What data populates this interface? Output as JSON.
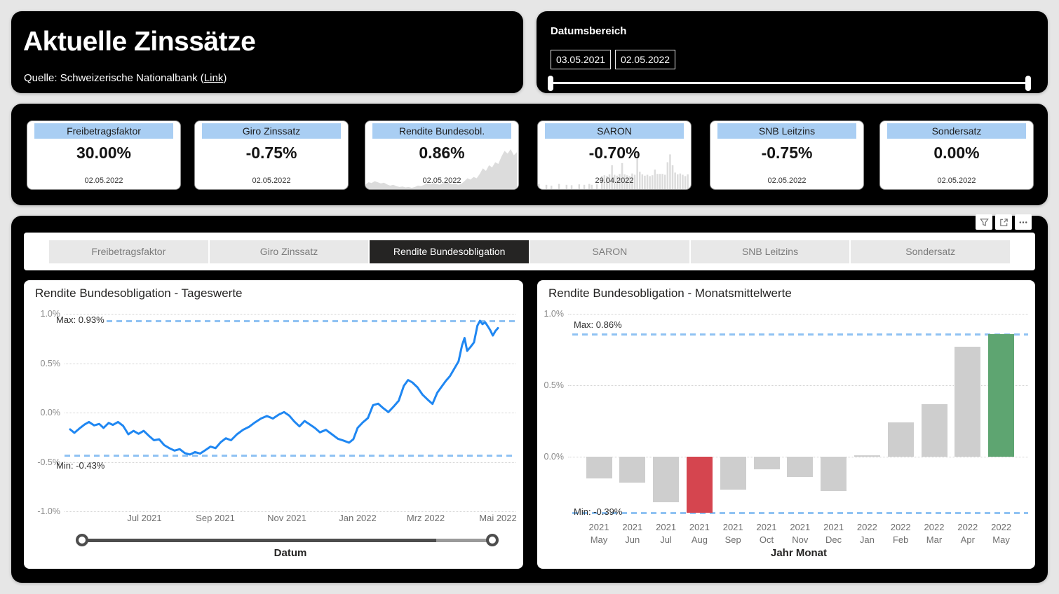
{
  "header": {
    "title": "Aktuelle Zinssätze",
    "source_prefix": "Quelle: Schweizerische Nationalbank (",
    "source_link": "Link",
    "source_suffix": ")"
  },
  "date_range": {
    "label": "Datumsbereich",
    "start": "03.05.2021",
    "end": "02.05.2022"
  },
  "kpi_cards": [
    {
      "title": "Freibetragsfaktor",
      "value": "30.00%",
      "date": "02.05.2022"
    },
    {
      "title": "Giro Zinssatz",
      "value": "-0.75%",
      "date": "02.05.2022"
    },
    {
      "title": "Rendite Bundesobl.",
      "value": "0.86%",
      "date": "02.05.2022"
    },
    {
      "title": "SARON",
      "value": "-0.70%",
      "date": "29.04.2022"
    },
    {
      "title": "SNB Leitzins",
      "value": "-0.75%",
      "date": "02.05.2022"
    },
    {
      "title": "Sondersatz",
      "value": "0.00%",
      "date": "02.05.2022"
    }
  ],
  "visual_header_icons": [
    "filter-icon",
    "popout-icon",
    "more-options-icon"
  ],
  "tabs": [
    {
      "label": "Freibetragsfaktor",
      "active": false
    },
    {
      "label": "Giro Zinssatz",
      "active": false
    },
    {
      "label": "Rendite Bundesobligation",
      "active": true
    },
    {
      "label": "SARON",
      "active": false
    },
    {
      "label": "SNB Leitzins",
      "active": false
    },
    {
      "label": "Sondersatz",
      "active": false
    }
  ],
  "colors": {
    "accent_blue": "#a9cef3",
    "line_blue": "#1f87f2",
    "dash_blue": "#8fc2f3",
    "bar_gray": "#cecece",
    "bar_red": "#d5454f",
    "bar_green": "#5ea571",
    "spark_gray": "#dcdcdc"
  },
  "chart_data": [
    {
      "type": "line",
      "title": "Rendite Bundesobligation - Tageswerte",
      "xlabel": "Datum",
      "ylabel": "",
      "ylim": [
        -1.0,
        1.0
      ],
      "ytick_values": [
        1.0,
        0.5,
        0.0,
        -0.5,
        -1.0
      ],
      "ytick_labels": [
        "1.0%",
        "0.5%",
        "0.0%",
        "-0.5%",
        "-1.0%"
      ],
      "xtick_labels": [
        "Jul 2021",
        "Sep 2021",
        "Nov 2021",
        "Jan 2022",
        "Mrz 2022",
        "Mai 2022"
      ],
      "max_label": "Max: 0.93%",
      "max_value": 0.93,
      "min_label": "Min: -0.43%",
      "min_value": -0.43,
      "grid": true,
      "points": [
        [
          0.0,
          -0.17
        ],
        [
          0.01,
          -0.205
        ],
        [
          0.022,
          -0.16
        ],
        [
          0.034,
          -0.12
        ],
        [
          0.044,
          -0.095
        ],
        [
          0.056,
          -0.13
        ],
        [
          0.068,
          -0.115
        ],
        [
          0.078,
          -0.155
        ],
        [
          0.09,
          -0.105
        ],
        [
          0.1,
          -0.125
        ],
        [
          0.112,
          -0.095
        ],
        [
          0.124,
          -0.135
        ],
        [
          0.136,
          -0.22
        ],
        [
          0.148,
          -0.185
        ],
        [
          0.16,
          -0.215
        ],
        [
          0.172,
          -0.185
        ],
        [
          0.184,
          -0.235
        ],
        [
          0.196,
          -0.28
        ],
        [
          0.208,
          -0.27
        ],
        [
          0.22,
          -0.33
        ],
        [
          0.232,
          -0.36
        ],
        [
          0.244,
          -0.385
        ],
        [
          0.256,
          -0.37
        ],
        [
          0.268,
          -0.41
        ],
        [
          0.28,
          -0.425
        ],
        [
          0.292,
          -0.4
        ],
        [
          0.304,
          -0.415
        ],
        [
          0.316,
          -0.38
        ],
        [
          0.328,
          -0.345
        ],
        [
          0.34,
          -0.36
        ],
        [
          0.352,
          -0.3
        ],
        [
          0.364,
          -0.26
        ],
        [
          0.376,
          -0.28
        ],
        [
          0.39,
          -0.22
        ],
        [
          0.404,
          -0.175
        ],
        [
          0.418,
          -0.145
        ],
        [
          0.432,
          -0.1
        ],
        [
          0.446,
          -0.06
        ],
        [
          0.46,
          -0.035
        ],
        [
          0.474,
          -0.06
        ],
        [
          0.488,
          -0.02
        ],
        [
          0.5,
          0.005
        ],
        [
          0.512,
          -0.03
        ],
        [
          0.524,
          -0.09
        ],
        [
          0.536,
          -0.14
        ],
        [
          0.548,
          -0.085
        ],
        [
          0.56,
          -0.12
        ],
        [
          0.572,
          -0.155
        ],
        [
          0.584,
          -0.2
        ],
        [
          0.598,
          -0.175
        ],
        [
          0.612,
          -0.22
        ],
        [
          0.626,
          -0.265
        ],
        [
          0.64,
          -0.285
        ],
        [
          0.652,
          -0.305
        ],
        [
          0.662,
          -0.27
        ],
        [
          0.672,
          -0.155
        ],
        [
          0.684,
          -0.1
        ],
        [
          0.696,
          -0.055
        ],
        [
          0.708,
          0.075
        ],
        [
          0.72,
          0.09
        ],
        [
          0.732,
          0.045
        ],
        [
          0.744,
          0.005
        ],
        [
          0.756,
          0.06
        ],
        [
          0.768,
          0.12
        ],
        [
          0.78,
          0.27
        ],
        [
          0.79,
          0.33
        ],
        [
          0.8,
          0.305
        ],
        [
          0.812,
          0.255
        ],
        [
          0.824,
          0.18
        ],
        [
          0.836,
          0.13
        ],
        [
          0.847,
          0.088
        ],
        [
          0.858,
          0.2
        ],
        [
          0.868,
          0.26
        ],
        [
          0.878,
          0.32
        ],
        [
          0.888,
          0.37
        ],
        [
          0.898,
          0.445
        ],
        [
          0.908,
          0.52
        ],
        [
          0.916,
          0.68
        ],
        [
          0.922,
          0.755
        ],
        [
          0.928,
          0.625
        ],
        [
          0.936,
          0.665
        ],
        [
          0.944,
          0.71
        ],
        [
          0.952,
          0.88
        ],
        [
          0.958,
          0.93
        ],
        [
          0.964,
          0.895
        ],
        [
          0.97,
          0.915
        ],
        [
          0.976,
          0.875
        ],
        [
          0.982,
          0.835
        ],
        [
          0.988,
          0.78
        ],
        [
          0.994,
          0.825
        ],
        [
          1.0,
          0.855
        ]
      ]
    },
    {
      "type": "bar",
      "title": "Rendite Bundesobligation - Monatsmittelwerte",
      "xlabel": "Jahr Monat",
      "ylabel": "",
      "ylim": [
        -0.55,
        1.05
      ],
      "ytick_values": [
        1.0,
        0.5,
        0.0
      ],
      "ytick_labels": [
        "1.0%",
        "0.5%",
        "0.0%"
      ],
      "categories": [
        [
          "2021",
          "May"
        ],
        [
          "2021",
          "Jun"
        ],
        [
          "2021",
          "Jul"
        ],
        [
          "2021",
          "Aug"
        ],
        [
          "2021",
          "Sep"
        ],
        [
          "2021",
          "Oct"
        ],
        [
          "2021",
          "Nov"
        ],
        [
          "2021",
          "Dec"
        ],
        [
          "2022",
          "Jan"
        ],
        [
          "2022",
          "Feb"
        ],
        [
          "2022",
          "Mar"
        ],
        [
          "2022",
          "Apr"
        ],
        [
          "2022",
          "May"
        ]
      ],
      "values": [
        -0.15,
        -0.18,
        -0.32,
        -0.39,
        -0.23,
        -0.09,
        -0.14,
        -0.24,
        0.01,
        0.24,
        0.37,
        0.77,
        0.86
      ],
      "min_index": 3,
      "max_index": 12,
      "max_label": "Max: 0.86%",
      "max_value": 0.86,
      "min_label": "Min: -0.39%",
      "min_value": -0.39,
      "grid": true
    }
  ],
  "spark_data": {
    "rendite": [
      0.1,
      0.16,
      0.14,
      0.18,
      0.16,
      0.13,
      0.15,
      0.11,
      0.08,
      0.1,
      0.07,
      0.05,
      0.06,
      0.04,
      0.05,
      0.03,
      0.05,
      0.08,
      0.07,
      0.1,
      0.13,
      0.11,
      0.14,
      0.12,
      0.1,
      0.13,
      0.16,
      0.14,
      0.11,
      0.13,
      0.1,
      0.12,
      0.18,
      0.25,
      0.22,
      0.28,
      0.25,
      0.35,
      0.48,
      0.42,
      0.55,
      0.5,
      0.62,
      0.58,
      0.75,
      0.88,
      0.82,
      0.92,
      0.78,
      0.85
    ],
    "saron": [
      0.12,
      0,
      0,
      0.1,
      0,
      0.08,
      0,
      0,
      0.12,
      0,
      0,
      0.1,
      0,
      0.09,
      0,
      0,
      0.11,
      0,
      0.1,
      0,
      0.12,
      0.1,
      0,
      0.11,
      0,
      0.3,
      0.32,
      0.3,
      0.34,
      0.55,
      0.33,
      0.31,
      0.35,
      0.6,
      0.34,
      0.32,
      0.3,
      0.36,
      0.33,
      0.85,
      0.4,
      0.34,
      0.31,
      0.33,
      0.3,
      0.32,
      0.45,
      0.35,
      0.35,
      0.35,
      0.33,
      0.62,
      0.8,
      0.55,
      0.38,
      0.34,
      0.36,
      0.33,
      0.3,
      0.34
    ]
  }
}
